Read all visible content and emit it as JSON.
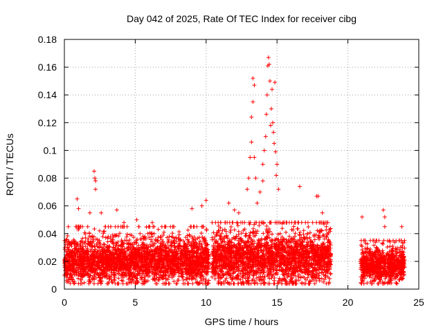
{
  "chart_data": {
    "type": "scatter",
    "title": "Day 042 of 2025, Rate Of TEC Index for receiver cibg",
    "xlabel": "GPS time / hours",
    "ylabel": "ROTI / TECUs",
    "xlim": [
      0,
      25
    ],
    "ylim": [
      0,
      0.18
    ],
    "x_ticks": [
      0,
      5,
      10,
      15,
      20,
      25
    ],
    "x_tick_labels": [
      "0",
      "5",
      "10",
      "15",
      "20",
      "25"
    ],
    "y_ticks": [
      0,
      0.02,
      0.04,
      0.06,
      0.08,
      0.1,
      0.12,
      0.14,
      0.16,
      0.18
    ],
    "y_tick_labels": [
      "0",
      "0.02",
      "0.04",
      "0.06",
      "0.08",
      "0.1",
      "0.12",
      "0.14",
      "0.16",
      "0.18"
    ],
    "grid": true,
    "marker": "+",
    "series_color": "#ff0000",
    "bands": [
      {
        "start": 0.0,
        "end": 10.2,
        "base": 0.02,
        "spread": 0.008,
        "max": 0.045
      },
      {
        "start": 10.4,
        "end": 18.8,
        "base": 0.022,
        "spread": 0.009,
        "max": 0.048
      },
      {
        "start": 20.9,
        "end": 24.0,
        "base": 0.017,
        "spread": 0.006,
        "max": 0.035
      }
    ],
    "outliers": [
      {
        "x": 0.9,
        "y": 0.065
      },
      {
        "x": 1.0,
        "y": 0.058
      },
      {
        "x": 2.1,
        "y": 0.085
      },
      {
        "x": 2.15,
        "y": 0.08
      },
      {
        "x": 2.2,
        "y": 0.078
      },
      {
        "x": 2.2,
        "y": 0.072
      },
      {
        "x": 1.8,
        "y": 0.055
      },
      {
        "x": 2.6,
        "y": 0.055
      },
      {
        "x": 3.7,
        "y": 0.057
      },
      {
        "x": 4.2,
        "y": 0.048
      },
      {
        "x": 5.1,
        "y": 0.05
      },
      {
        "x": 6.2,
        "y": 0.048
      },
      {
        "x": 9.0,
        "y": 0.058
      },
      {
        "x": 9.7,
        "y": 0.06
      },
      {
        "x": 10.0,
        "y": 0.064
      },
      {
        "x": 11.6,
        "y": 0.062
      },
      {
        "x": 12.0,
        "y": 0.057
      },
      {
        "x": 12.3,
        "y": 0.055
      },
      {
        "x": 13.0,
        "y": 0.08
      },
      {
        "x": 13.1,
        "y": 0.095
      },
      {
        "x": 13.2,
        "y": 0.106
      },
      {
        "x": 13.2,
        "y": 0.124
      },
      {
        "x": 13.3,
        "y": 0.135
      },
      {
        "x": 13.3,
        "y": 0.152
      },
      {
        "x": 13.4,
        "y": 0.147
      },
      {
        "x": 13.5,
        "y": 0.08
      },
      {
        "x": 13.4,
        "y": 0.095
      },
      {
        "x": 13.8,
        "y": 0.07
      },
      {
        "x": 14.0,
        "y": 0.09
      },
      {
        "x": 14.1,
        "y": 0.1
      },
      {
        "x": 14.2,
        "y": 0.11
      },
      {
        "x": 14.25,
        "y": 0.126
      },
      {
        "x": 14.3,
        "y": 0.14
      },
      {
        "x": 14.35,
        "y": 0.161
      },
      {
        "x": 14.4,
        "y": 0.167
      },
      {
        "x": 14.45,
        "y": 0.162
      },
      {
        "x": 14.5,
        "y": 0.15
      },
      {
        "x": 14.6,
        "y": 0.13
      },
      {
        "x": 14.7,
        "y": 0.12
      },
      {
        "x": 14.75,
        "y": 0.113
      },
      {
        "x": 14.8,
        "y": 0.105
      },
      {
        "x": 14.85,
        "y": 0.149
      },
      {
        "x": 14.9,
        "y": 0.099
      },
      {
        "x": 14.95,
        "y": 0.082
      },
      {
        "x": 15.0,
        "y": 0.09
      },
      {
        "x": 15.1,
        "y": 0.072
      },
      {
        "x": 14.65,
        "y": 0.144
      },
      {
        "x": 14.55,
        "y": 0.118
      },
      {
        "x": 16.6,
        "y": 0.074
      },
      {
        "x": 17.8,
        "y": 0.067
      },
      {
        "x": 17.9,
        "y": 0.067
      },
      {
        "x": 18.2,
        "y": 0.055
      },
      {
        "x": 21.0,
        "y": 0.052
      },
      {
        "x": 22.5,
        "y": 0.057
      },
      {
        "x": 22.6,
        "y": 0.052
      },
      {
        "x": 22.6,
        "y": 0.045
      },
      {
        "x": 23.8,
        "y": 0.045
      },
      {
        "x": 12.9,
        "y": 0.072
      },
      {
        "x": 13.6,
        "y": 0.062
      },
      {
        "x": 14.0,
        "y": 0.078
      }
    ]
  }
}
